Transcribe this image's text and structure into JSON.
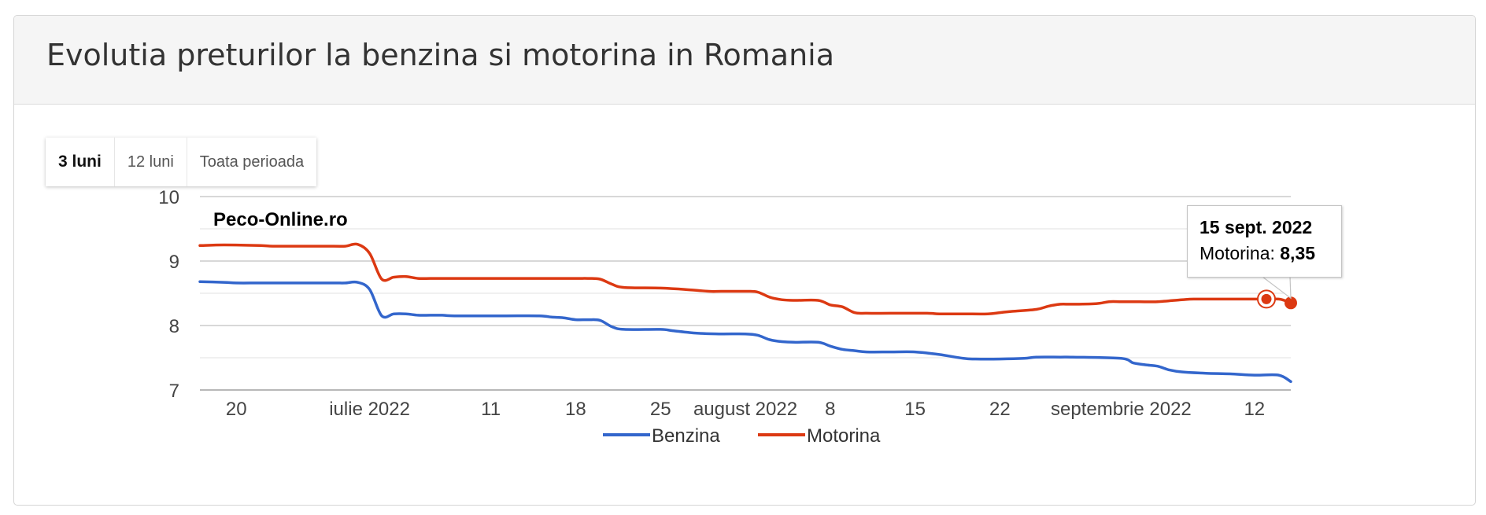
{
  "panel": {
    "title": "Evolutia preturilor la benzina si motorina in Romania"
  },
  "range_buttons": [
    {
      "label": "3 luni",
      "active": true
    },
    {
      "label": "12 luni",
      "active": false
    },
    {
      "label": "Toata perioada",
      "active": false
    }
  ],
  "tooltip": {
    "date": "15 sept. 2022",
    "series_label": "Motorina:",
    "value": "8,35"
  },
  "chart_data": {
    "type": "line",
    "watermark": "Peco-Online.ro",
    "x_start": "2022-06-17",
    "x_end": "2022-09-15",
    "y_ticks": [
      "7",
      "8",
      "9",
      "10"
    ],
    "ylim": [
      7,
      10
    ],
    "minor_gridlines": [
      7.5,
      8.5,
      9.5
    ],
    "x_ticks": [
      {
        "date": "2022-06-20",
        "label": "20"
      },
      {
        "date": "2022-07-01",
        "label": "iulie 2022"
      },
      {
        "date": "2022-07-11",
        "label": "11"
      },
      {
        "date": "2022-07-18",
        "label": "18"
      },
      {
        "date": "2022-07-25",
        "label": "25"
      },
      {
        "date": "2022-08-01",
        "label": "august 2022"
      },
      {
        "date": "2022-08-08",
        "label": "8"
      },
      {
        "date": "2022-08-15",
        "label": "15"
      },
      {
        "date": "2022-08-22",
        "label": "22"
      },
      {
        "date": "2022-09-01",
        "label": "septembrie 2022"
      },
      {
        "date": "2022-09-12",
        "label": "12"
      }
    ],
    "legend_position": "bottom",
    "series": [
      {
        "name": "Benzina",
        "color": "#3366cc",
        "points": [
          [
            "2022-06-17",
            8.68
          ],
          [
            "2022-06-19",
            8.67
          ],
          [
            "2022-06-20",
            8.66
          ],
          [
            "2022-06-22",
            8.66
          ],
          [
            "2022-06-25",
            8.66
          ],
          [
            "2022-06-28",
            8.66
          ],
          [
            "2022-06-29",
            8.66
          ],
          [
            "2022-06-30",
            8.67
          ],
          [
            "2022-07-01",
            8.56
          ],
          [
            "2022-07-02",
            8.15
          ],
          [
            "2022-07-03",
            8.18
          ],
          [
            "2022-07-04",
            8.18
          ],
          [
            "2022-07-05",
            8.16
          ],
          [
            "2022-07-06",
            8.16
          ],
          [
            "2022-07-07",
            8.16
          ],
          [
            "2022-07-08",
            8.15
          ],
          [
            "2022-07-12",
            8.15
          ],
          [
            "2022-07-15",
            8.15
          ],
          [
            "2022-07-16",
            8.13
          ],
          [
            "2022-07-17",
            8.12
          ],
          [
            "2022-07-18",
            8.09
          ],
          [
            "2022-07-19",
            8.09
          ],
          [
            "2022-07-20",
            8.08
          ],
          [
            "2022-07-21",
            7.98
          ],
          [
            "2022-07-22",
            7.94
          ],
          [
            "2022-07-25",
            7.94
          ],
          [
            "2022-07-26",
            7.92
          ],
          [
            "2022-07-28",
            7.88
          ],
          [
            "2022-07-30",
            7.87
          ],
          [
            "2022-08-01",
            7.87
          ],
          [
            "2022-08-02",
            7.85
          ],
          [
            "2022-08-03",
            7.78
          ],
          [
            "2022-08-04",
            7.75
          ],
          [
            "2022-08-05",
            7.74
          ],
          [
            "2022-08-07",
            7.74
          ],
          [
            "2022-08-08",
            7.68
          ],
          [
            "2022-08-09",
            7.63
          ],
          [
            "2022-08-10",
            7.61
          ],
          [
            "2022-08-11",
            7.59
          ],
          [
            "2022-08-13",
            7.59
          ],
          [
            "2022-08-15",
            7.59
          ],
          [
            "2022-08-17",
            7.55
          ],
          [
            "2022-08-19",
            7.49
          ],
          [
            "2022-08-20",
            7.48
          ],
          [
            "2022-08-22",
            7.48
          ],
          [
            "2022-08-24",
            7.49
          ],
          [
            "2022-08-25",
            7.51
          ],
          [
            "2022-08-27",
            7.51
          ],
          [
            "2022-08-28",
            7.51
          ],
          [
            "2022-09-01",
            7.49
          ],
          [
            "2022-09-02",
            7.42
          ],
          [
            "2022-09-03",
            7.39
          ],
          [
            "2022-09-04",
            7.37
          ],
          [
            "2022-09-05",
            7.31
          ],
          [
            "2022-09-06",
            7.28
          ],
          [
            "2022-09-08",
            7.26
          ],
          [
            "2022-09-10",
            7.25
          ],
          [
            "2022-09-12",
            7.23
          ],
          [
            "2022-09-14",
            7.23
          ],
          [
            "2022-09-15",
            7.13
          ]
        ]
      },
      {
        "name": "Motorina",
        "color": "#dc3912",
        "points": [
          [
            "2022-06-17",
            9.24
          ],
          [
            "2022-06-19",
            9.25
          ],
          [
            "2022-06-22",
            9.24
          ],
          [
            "2022-06-23",
            9.23
          ],
          [
            "2022-06-25",
            9.23
          ],
          [
            "2022-06-28",
            9.23
          ],
          [
            "2022-06-29",
            9.23
          ],
          [
            "2022-06-30",
            9.26
          ],
          [
            "2022-07-01",
            9.12
          ],
          [
            "2022-07-02",
            8.72
          ],
          [
            "2022-07-03",
            8.75
          ],
          [
            "2022-07-04",
            8.76
          ],
          [
            "2022-07-05",
            8.73
          ],
          [
            "2022-07-06",
            8.73
          ],
          [
            "2022-07-07",
            8.73
          ],
          [
            "2022-07-08",
            8.73
          ],
          [
            "2022-07-12",
            8.73
          ],
          [
            "2022-07-15",
            8.73
          ],
          [
            "2022-07-18",
            8.73
          ],
          [
            "2022-07-19",
            8.73
          ],
          [
            "2022-07-20",
            8.72
          ],
          [
            "2022-07-21",
            8.64
          ],
          [
            "2022-07-22",
            8.59
          ],
          [
            "2022-07-25",
            8.58
          ],
          [
            "2022-07-27",
            8.56
          ],
          [
            "2022-07-29",
            8.53
          ],
          [
            "2022-07-30",
            8.53
          ],
          [
            "2022-08-01",
            8.53
          ],
          [
            "2022-08-02",
            8.52
          ],
          [
            "2022-08-03",
            8.44
          ],
          [
            "2022-08-04",
            8.4
          ],
          [
            "2022-08-05",
            8.39
          ],
          [
            "2022-08-07",
            8.39
          ],
          [
            "2022-08-08",
            8.32
          ],
          [
            "2022-08-09",
            8.29
          ],
          [
            "2022-08-10",
            8.2
          ],
          [
            "2022-08-11",
            8.19
          ],
          [
            "2022-08-13",
            8.19
          ],
          [
            "2022-08-16",
            8.19
          ],
          [
            "2022-08-17",
            8.18
          ],
          [
            "2022-08-19",
            8.18
          ],
          [
            "2022-08-21",
            8.18
          ],
          [
            "2022-08-22",
            8.2
          ],
          [
            "2022-08-23",
            8.22
          ],
          [
            "2022-08-25",
            8.25
          ],
          [
            "2022-08-26",
            8.3
          ],
          [
            "2022-08-27",
            8.33
          ],
          [
            "2022-08-28",
            8.33
          ],
          [
            "2022-08-30",
            8.34
          ],
          [
            "2022-08-31",
            8.37
          ],
          [
            "2022-09-01",
            8.37
          ],
          [
            "2022-09-02",
            8.37
          ],
          [
            "2022-09-04",
            8.37
          ],
          [
            "2022-09-06",
            8.4
          ],
          [
            "2022-09-07",
            8.41
          ],
          [
            "2022-09-09",
            8.41
          ],
          [
            "2022-09-12",
            8.41
          ],
          [
            "2022-09-14",
            8.41
          ],
          [
            "2022-09-15",
            8.35
          ]
        ]
      }
    ]
  }
}
